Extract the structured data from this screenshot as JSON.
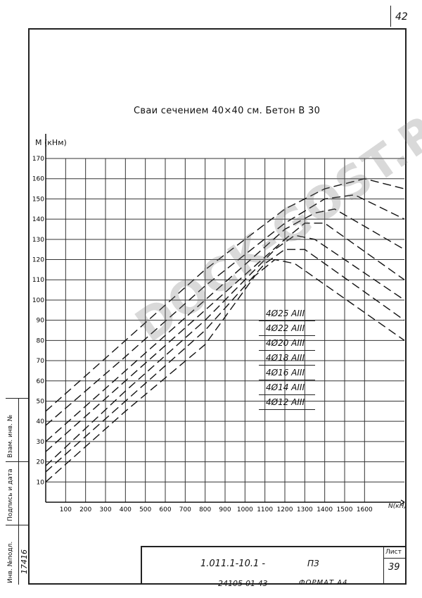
{
  "sheet_number": "42",
  "title": "Сваи сечением 40×40 см. Бетон В 30",
  "chart_data": {
    "type": "line",
    "title": "Сваи сечением 40×40 см. Бетон В 30",
    "xlabel": "N(кН)",
    "ylabel": "M (кНм)",
    "xlim": [
      0,
      1800
    ],
    "ylim": [
      0,
      170
    ],
    "x_ticks": [
      100,
      200,
      300,
      400,
      500,
      600,
      700,
      800,
      900,
      1000,
      1100,
      1200,
      1300,
      1400,
      1500,
      1600
    ],
    "y_ticks": [
      10,
      20,
      30,
      40,
      50,
      60,
      70,
      80,
      90,
      100,
      110,
      120,
      130,
      140,
      150,
      160,
      170
    ],
    "grid": true,
    "line_style": "dashed",
    "legend_placement": "center-right",
    "series": [
      {
        "name": "4Ø25 АIII",
        "x": [
          0,
          400,
          800,
          1200,
          1400,
          1600,
          1800
        ],
        "y": [
          45,
          80,
          115,
          145,
          155,
          160,
          155
        ]
      },
      {
        "name": "4Ø22 АIII",
        "x": [
          0,
          400,
          800,
          1200,
          1400,
          1550,
          1800
        ],
        "y": [
          38,
          72,
          107,
          138,
          150,
          152,
          140
        ]
      },
      {
        "name": "4Ø20 АIII",
        "x": [
          0,
          400,
          800,
          1200,
          1350,
          1450,
          1800
        ],
        "y": [
          30,
          65,
          100,
          135,
          143,
          145,
          125
        ]
      },
      {
        "name": "4Ø18 АIII",
        "x": [
          0,
          400,
          800,
          1200,
          1300,
          1400,
          1800
        ],
        "y": [
          25,
          60,
          95,
          130,
          138,
          138,
          110
        ]
      },
      {
        "name": "4Ø16 АIII",
        "x": [
          0,
          400,
          800,
          1150,
          1250,
          1350,
          1800
        ],
        "y": [
          18,
          55,
          90,
          125,
          132,
          130,
          100
        ]
      },
      {
        "name": "4Ø14 АIII",
        "x": [
          0,
          400,
          800,
          1100,
          1200,
          1300,
          1800
        ],
        "y": [
          15,
          50,
          85,
          118,
          125,
          125,
          90
        ]
      },
      {
        "name": "4Ø12 АIII",
        "x": [
          0,
          400,
          800,
          1050,
          1150,
          1250,
          1800
        ],
        "y": [
          10,
          45,
          78,
          112,
          120,
          118,
          80
        ]
      }
    ]
  },
  "stamp": {
    "code": "1.011.1-10.1 -",
    "section": "ПЗ",
    "sheet_label": "Лист",
    "sheet": "39"
  },
  "bottom": {
    "code": "24105-01  43",
    "format": "ФОРМАТ А4"
  },
  "side_block": {
    "inv_podl": "Инв. №подл.",
    "podpis": "Подпись и дата",
    "vzam": "Взам. инв. №",
    "number": "17416"
  },
  "watermark": "DOCK-GOST.RU"
}
